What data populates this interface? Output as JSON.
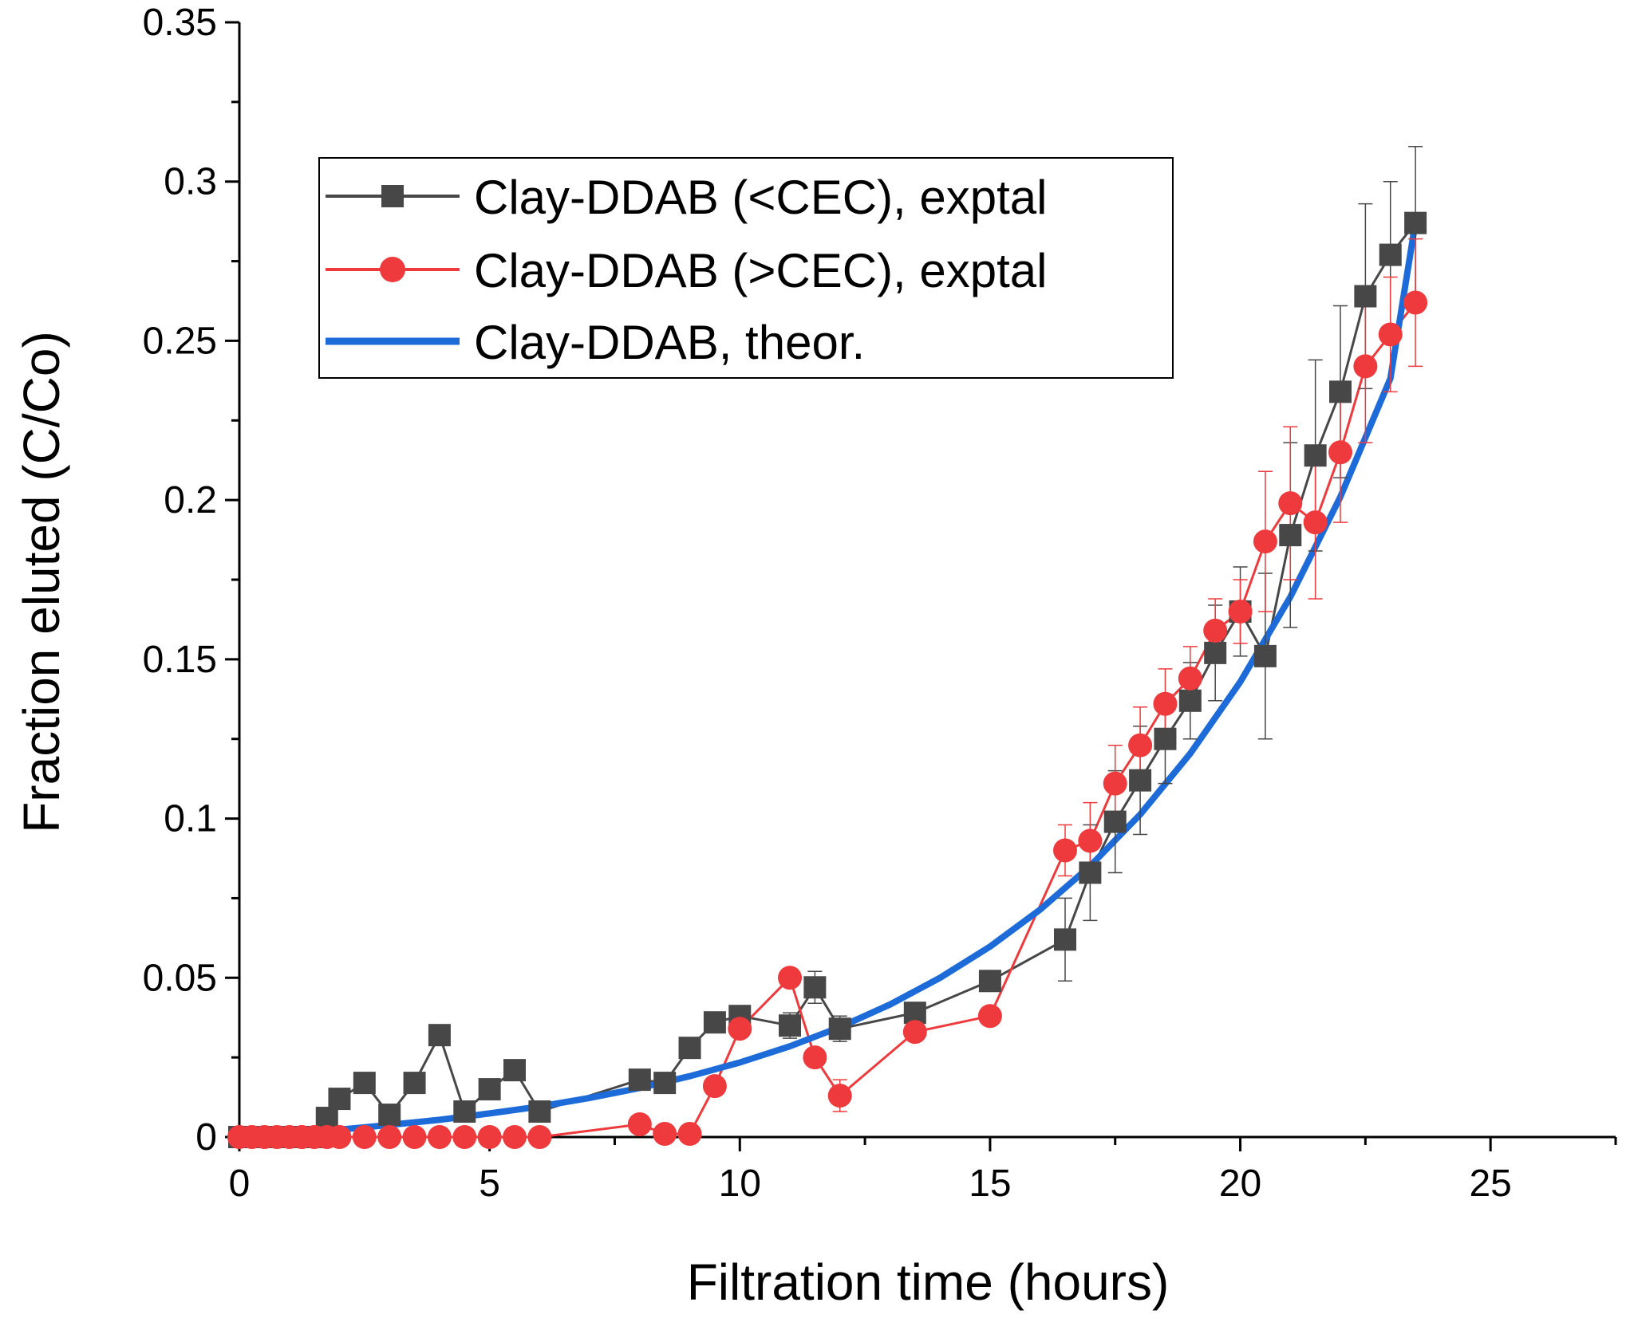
{
  "chart_data": {
    "type": "line",
    "title": "",
    "xlabel": "Filtration time (hours)",
    "ylabel": "Fraction eluted (C/Co)",
    "xlim": [
      0,
      27.5
    ],
    "ylim": [
      0,
      0.35
    ],
    "x_ticks": [
      0,
      5,
      10,
      15,
      20,
      25
    ],
    "x_tick_labels": [
      "0",
      "5",
      "10",
      "15",
      "20",
      "25"
    ],
    "y_ticks": [
      0,
      0.05,
      0.1,
      0.15,
      0.2,
      0.25,
      0.3,
      0.35
    ],
    "y_tick_labels": [
      "0",
      "0.05",
      "0.1",
      "0.15",
      "0.2",
      "0.25",
      "0.3",
      "0.35"
    ],
    "grid": false,
    "legend_position": "upper-left",
    "series": [
      {
        "name": "Clay-DDAB (<CEC), exptal",
        "color": "#474747",
        "marker": "square",
        "x": [
          0,
          0.25,
          0.5,
          0.75,
          1,
          1.25,
          1.5,
          1.75,
          2,
          2.5,
          3,
          3.5,
          4,
          4.5,
          5,
          5.5,
          6,
          8,
          8.5,
          9,
          9.5,
          10,
          11,
          11.5,
          12,
          13.5,
          15,
          16.5,
          17,
          17.5,
          18,
          18.5,
          19,
          19.5,
          20,
          20.5,
          21,
          21.5,
          22,
          22.5,
          23,
          23.5
        ],
        "y": [
          0,
          0,
          0,
          0,
          0,
          0,
          0,
          0.006,
          0.012,
          0.017,
          0.007,
          0.017,
          0.032,
          0.008,
          0.015,
          0.021,
          0.008,
          0.018,
          0.017,
          0.028,
          0.036,
          0.038,
          0.035,
          0.047,
          0.034,
          0.039,
          0.049,
          0.062,
          0.083,
          0.099,
          0.112,
          0.125,
          0.137,
          0.152,
          0.165,
          0.151,
          0.189,
          0.214,
          0.234,
          0.264,
          0.277,
          0.287
        ],
        "errors": [
          0,
          0,
          0,
          0,
          0,
          0,
          0,
          0,
          0,
          0,
          0,
          0,
          0,
          0,
          0,
          0,
          0,
          0,
          0,
          0,
          0,
          0,
          0.004,
          0.005,
          0.004,
          0,
          0,
          0.013,
          0.015,
          0.016,
          0.017,
          0.014,
          0.012,
          0.015,
          0.014,
          0.026,
          0.029,
          0.03,
          0.027,
          0.029,
          0.023,
          0.024
        ]
      },
      {
        "name": "Clay-DDAB (>CEC), exptal",
        "color": "#ef3a3d",
        "marker": "circle",
        "x": [
          0,
          0.25,
          0.5,
          0.75,
          1,
          1.25,
          1.5,
          1.75,
          2,
          2.5,
          3,
          3.5,
          4,
          4.5,
          5,
          5.5,
          6,
          8,
          8.5,
          9,
          9.5,
          10,
          11,
          11.5,
          12,
          13.5,
          15,
          16.5,
          17,
          17.5,
          18,
          18.5,
          19,
          19.5,
          20,
          20.5,
          21,
          21.5,
          22,
          22.5,
          23,
          23.5
        ],
        "y": [
          0,
          0,
          0,
          0,
          0,
          0,
          0,
          0,
          0,
          0,
          0,
          0,
          0,
          0,
          0,
          0,
          0,
          0.004,
          0.001,
          0.001,
          0.016,
          0.034,
          0.05,
          0.025,
          0.013,
          0.033,
          0.038,
          0.09,
          0.093,
          0.111,
          0.123,
          0.136,
          0.144,
          0.159,
          0.165,
          0.187,
          0.199,
          0.193,
          0.215,
          0.242,
          0.252,
          0.262
        ],
        "errors": [
          0,
          0,
          0,
          0,
          0,
          0,
          0,
          0,
          0,
          0,
          0,
          0,
          0,
          0,
          0,
          0,
          0,
          0,
          0,
          0,
          0,
          0,
          0,
          0,
          0.005,
          0,
          0,
          0.008,
          0.012,
          0.012,
          0.012,
          0.011,
          0.01,
          0.01,
          0.01,
          0.022,
          0.024,
          0.024,
          0.022,
          0.024,
          0.018,
          0.02
        ]
      },
      {
        "name": "Clay-DDAB, theor.",
        "color": "#1c6bd9",
        "marker": "none",
        "model": "exponential",
        "x": [
          0,
          1,
          2,
          3,
          4,
          5,
          6,
          7,
          8,
          9,
          10,
          11,
          12,
          13,
          14,
          15,
          16,
          17,
          18,
          19,
          20,
          21,
          22,
          23,
          23.5
        ],
        "y": [
          0,
          0.0011,
          0.0023,
          0.0038,
          0.0054,
          0.0074,
          0.0096,
          0.0123,
          0.0154,
          0.0191,
          0.0234,
          0.0285,
          0.0345,
          0.0416,
          0.05,
          0.0598,
          0.0714,
          0.0851,
          0.1013,
          0.1204,
          0.1429,
          0.1696,
          0.201,
          0.2382,
          0.2873
        ]
      }
    ]
  }
}
